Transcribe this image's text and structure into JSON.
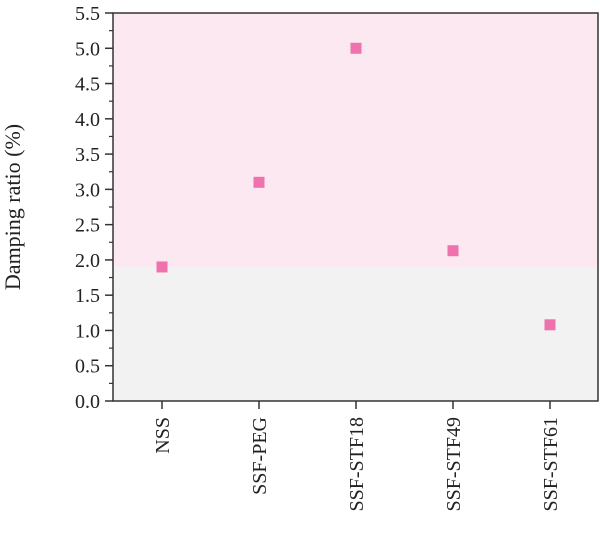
{
  "chart_data": {
    "type": "scatter",
    "title": "",
    "xlabel": "",
    "ylabel": "Damping ratio (%)",
    "categories": [
      "NSS",
      "SSF-PEG",
      "SSF-STF18",
      "SSF-STF49",
      "SSF-STF61"
    ],
    "values": [
      1.9,
      3.1,
      5.0,
      2.13,
      1.08
    ],
    "ylim": [
      0.0,
      5.5
    ],
    "yticks": [
      "0.0",
      "0.5",
      "1.0",
      "1.5",
      "2.0",
      "2.5",
      "3.0",
      "3.5",
      "4.0",
      "4.5",
      "5.0",
      "5.5"
    ],
    "y_minor_step": 0.25,
    "background_bands": [
      {
        "from": 0.0,
        "to": 1.9,
        "color": "#f2f2f2"
      },
      {
        "from": 1.9,
        "to": 5.5,
        "color": "#fce8f1"
      }
    ],
    "marker_color": "#ee72ad",
    "marker_shape": "square",
    "grid": false,
    "legend": "none"
  }
}
